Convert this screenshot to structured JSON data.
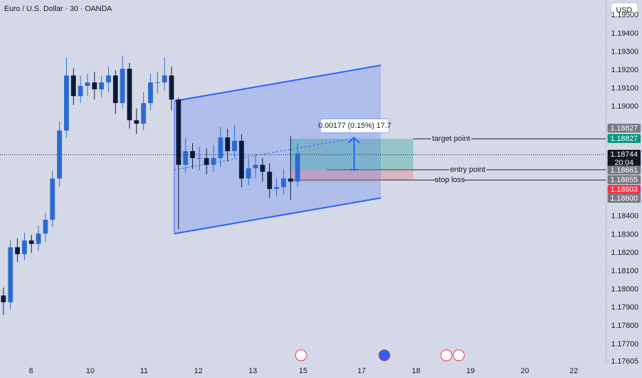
{
  "header": {
    "title": "Euro / U.S. Dollar · 30 · OANDA",
    "currency": "USD"
  },
  "chart_data": {
    "type": "candlestick",
    "background": "#d5d8e6",
    "up_color": "#2a6bd1",
    "down_color": "#0c1a3a",
    "open": [
      1.17967,
      1.1793,
      1.18231,
      1.18193,
      1.18268,
      1.18249,
      1.18306,
      1.18381,
      1.18607,
      1.1887,
      1.19171,
      1.19058,
      1.19114,
      1.19133,
      1.19095,
      1.19133,
      1.19171,
      1.1902,
      1.19208,
      1.18926,
      1.18907,
      1.1902,
      1.19133,
      1.19133,
      1.19171,
      1.19039,
      1.18682,
      1.18757,
      1.18719,
      1.18719,
      1.18682,
      1.18719,
      1.18832,
      1.18757,
      1.18813,
      1.18607,
      1.18663,
      1.18682,
      1.18644,
      1.1855,
      1.1856,
      1.18607,
      1.1859
    ],
    "high": [
      1.1801,
      1.1827,
      1.1828,
      1.1831,
      1.183,
      1.1835,
      1.1842,
      1.1865,
      1.1892,
      1.1927,
      1.1921,
      1.1917,
      1.1918,
      1.1919,
      1.1917,
      1.1922,
      1.192,
      1.1928,
      1.1924,
      1.1899,
      1.1908,
      1.1918,
      1.1919,
      1.1927,
      1.1922,
      1.1905,
      1.1883,
      1.188,
      1.1878,
      1.1877,
      1.1879,
      1.1889,
      1.1888,
      1.189,
      1.1885,
      1.1872,
      1.1874,
      1.1872,
      1.1869,
      1.1861,
      1.1866,
      1.1884,
      1.188
    ],
    "low": [
      1.1786,
      1.1789,
      1.1815,
      1.1816,
      1.182,
      1.1821,
      1.1826,
      1.1834,
      1.1856,
      1.1883,
      1.1901,
      1.1902,
      1.1906,
      1.1904,
      1.1905,
      1.1908,
      1.1896,
      1.1899,
      1.1888,
      1.1885,
      1.1887,
      1.1898,
      1.1907,
      1.1909,
      1.1898,
      1.1833,
      1.1864,
      1.1866,
      1.1865,
      1.1863,
      1.1864,
      1.1867,
      1.187,
      1.1872,
      1.1856,
      1.1857,
      1.1861,
      1.1859,
      1.185,
      1.1851,
      1.1852,
      1.1849,
      1.1856
    ],
    "close": [
      1.1793,
      1.18231,
      1.18193,
      1.18268,
      1.18249,
      1.18306,
      1.18381,
      1.18607,
      1.1887,
      1.19171,
      1.19058,
      1.19114,
      1.19133,
      1.19095,
      1.19133,
      1.19171,
      1.1902,
      1.19208,
      1.18926,
      1.18907,
      1.1902,
      1.19133,
      1.19133,
      1.19171,
      1.19039,
      1.18682,
      1.18757,
      1.18719,
      1.18719,
      1.18682,
      1.18719,
      1.18832,
      1.18757,
      1.18813,
      1.18607,
      1.18663,
      1.18682,
      1.18644,
      1.1855,
      1.1856,
      1.18607,
      1.1859,
      1.18744
    ],
    "ylim": [
      1.17598,
      1.19584
    ],
    "yticks": [
      {
        "value": 1.195,
        "label": "1.19500"
      },
      {
        "value": 1.194,
        "label": "1.19400"
      },
      {
        "value": 1.193,
        "label": "1.19300"
      },
      {
        "value": 1.192,
        "label": "1.19200"
      },
      {
        "value": 1.191,
        "label": "1.19100"
      },
      {
        "value": 1.19,
        "label": "1.19000"
      },
      {
        "value": 1.184,
        "label": "1.18400"
      },
      {
        "value": 1.183,
        "label": "1.18300"
      },
      {
        "value": 1.182,
        "label": "1.18200"
      },
      {
        "value": 1.181,
        "label": "1.18100"
      },
      {
        "value": 1.18,
        "label": "1.18000"
      },
      {
        "value": 1.179,
        "label": "1.17900"
      },
      {
        "value": 1.178,
        "label": "1.17800"
      },
      {
        "value": 1.177,
        "label": "1.17700"
      },
      1.17605
    ],
    "x_labels": [
      8,
      10,
      11,
      12,
      13,
      15,
      17,
      18,
      19,
      20,
      22
    ],
    "price_markers": [
      {
        "price": 1.18827,
        "color": "#787b86"
      },
      {
        "price": 1.18827,
        "color": "#089981"
      },
      {
        "price": 1.18744,
        "color": "#131722"
      },
      {
        "price": 1.18661,
        "color": "#787b86"
      },
      {
        "price": 1.18655,
        "color": "#787b86"
      },
      {
        "price": 1.18603,
        "color": "#f23645"
      },
      {
        "price": {
          "value": 1.186,
          "label": "1.18600"
        },
        "color": "#787b86"
      }
    ],
    "countdown": "20:04",
    "annotations": {
      "target": "target point",
      "entry": "entry point",
      "stop": "stop loss",
      "measure": "0.00177 (0.15%) 17.7"
    }
  }
}
